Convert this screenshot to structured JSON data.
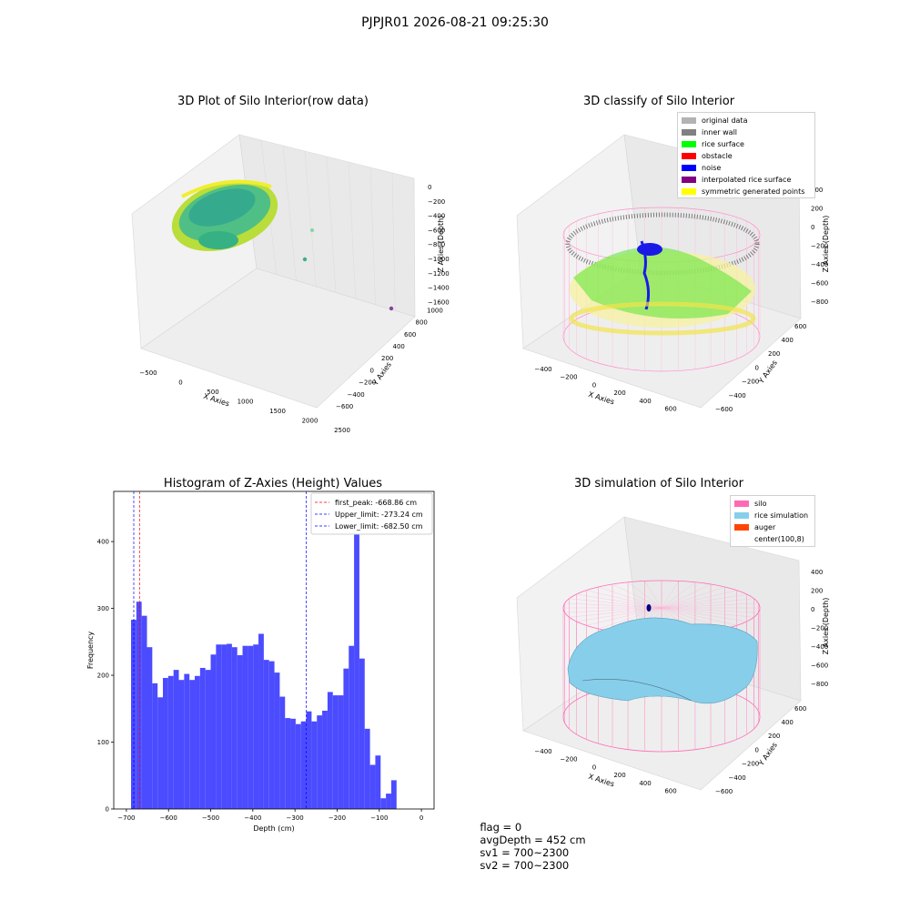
{
  "suptitle": "PJPJR01 2026-08-21 09:25:30",
  "panels": {
    "p1": {
      "title": "3D Plot of Silo Interior(row data)",
      "xlabel": "X Axies",
      "ylabel": "Y Axies",
      "zlabel": "Z Axies (Depth)",
      "xticks": [
        "−500",
        "0",
        "500",
        "1000",
        "1500",
        "2000",
        "2500"
      ],
      "yticks": [
        "−600",
        "−400",
        "−200",
        "0",
        "200",
        "400",
        "600",
        "800",
        "1000"
      ],
      "zticks": [
        "0",
        "−200",
        "−400",
        "−600",
        "−800",
        "−1000",
        "−1200",
        "−1400",
        "−1600"
      ]
    },
    "p2": {
      "title": "3D classify of Silo Interior",
      "xlabel": "X Axies",
      "ylabel": "Y Axies",
      "zlabel": "Z Axies (Depth)",
      "xticks": [
        "−400",
        "−200",
        "0",
        "200",
        "400",
        "600"
      ],
      "yticks": [
        "−600",
        "−400",
        "−200",
        "0",
        "200",
        "400",
        "600"
      ],
      "zticks": [
        "400",
        "200",
        "0",
        "−200",
        "−400",
        "−600",
        "−800"
      ],
      "legend": [
        {
          "label": "original data",
          "color": "#b3b3b3"
        },
        {
          "label": "inner wall",
          "color": "#808080"
        },
        {
          "label": "rice surface",
          "color": "#00ff00"
        },
        {
          "label": "obstacle",
          "color": "#ff0000"
        },
        {
          "label": "noise",
          "color": "#0000ff"
        },
        {
          "label": "interpolated rice surface",
          "color": "#800080"
        },
        {
          "label": "symmetric generated points",
          "color": "#ffff00"
        }
      ]
    },
    "p4": {
      "title": "3D simulation of Silo Interior",
      "xlabel": "X Axies",
      "ylabel": "Y Axies",
      "zlabel": "Z Axies (Depth)",
      "xticks": [
        "−400",
        "−200",
        "0",
        "200",
        "400",
        "600"
      ],
      "yticks": [
        "−600",
        "−400",
        "−200",
        "0",
        "200",
        "400",
        "600"
      ],
      "zticks": [
        "400",
        "200",
        "0",
        "−200",
        "−400",
        "−600",
        "−800"
      ],
      "legend": [
        {
          "label": "silo",
          "color": "#ff69b4"
        },
        {
          "label": "rice simulation",
          "color": "#87ceeb"
        },
        {
          "label": "auger",
          "color": "#ff4500"
        },
        {
          "label": "center(100,8)",
          "color": "#ffffff"
        }
      ]
    }
  },
  "status": {
    "flag": "flag = 0",
    "avg_depth": "avgDepth = 452 cm",
    "sv1": "sv1 = 700~2300",
    "sv2": "sv2 = 700~2300"
  },
  "chart_data": [
    {
      "type": "bar",
      "title": "Histogram of Z-Axies (Height) Values",
      "xlabel": "Depth (cm)",
      "ylabel": "Frequency",
      "xlim": [
        -730,
        30
      ],
      "ylim": [
        0,
        475
      ],
      "xticks": [
        -700,
        -600,
        -500,
        -400,
        -300,
        -200,
        -100,
        0
      ],
      "yticks": [
        0,
        100,
        200,
        300,
        400
      ],
      "bin_start": -689,
      "bin_width": 12.6,
      "values": [
        283,
        310,
        289,
        242,
        188,
        167,
        196,
        199,
        208,
        193,
        202,
        193,
        199,
        211,
        208,
        231,
        246,
        246,
        247,
        242,
        230,
        244,
        244,
        246,
        262,
        223,
        221,
        204,
        168,
        136,
        135,
        127,
        131,
        146,
        131,
        140,
        147,
        175,
        170,
        170,
        210,
        244,
        452,
        225,
        120,
        66,
        80,
        16,
        23,
        43
      ],
      "bar_color": "#4b4bff",
      "lines": [
        {
          "label": "first_peak: -668.86 cm",
          "value": -668.86,
          "color": "#ff0000"
        },
        {
          "label": "Upper_limit: -273.24 cm",
          "value": -273.24,
          "color": "#0000ff"
        },
        {
          "label": "Lower_limit: -682.50 cm",
          "value": -682.5,
          "color": "#0000ff"
        }
      ]
    }
  ]
}
